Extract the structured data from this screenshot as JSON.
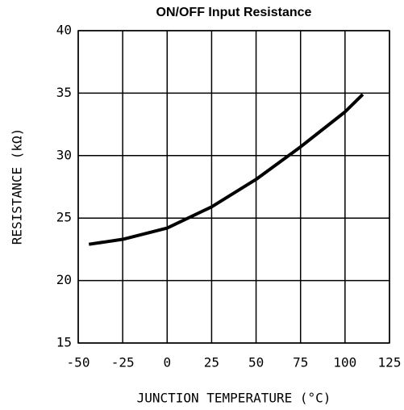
{
  "chart_data": {
    "type": "line",
    "title": "ON/OFF Input Resistance",
    "x_label": "JUNCTION TEMPERATURE (°C)",
    "y_label": "RESISTANCE (kΩ)",
    "x": [
      -44,
      -25,
      0,
      25,
      50,
      75,
      100,
      110
    ],
    "series": [
      {
        "name": "Resistance",
        "color": "#000000",
        "values": [
          22.9,
          23.3,
          24.2,
          25.9,
          28.1,
          30.7,
          33.5,
          34.9
        ]
      }
    ],
    "xlim": [
      -50,
      125
    ],
    "xticks": [
      -50,
      -25,
      0,
      25,
      50,
      75,
      100,
      125
    ],
    "ylim": [
      15,
      40
    ],
    "yticks": [
      15,
      20,
      25,
      30,
      35,
      40
    ],
    "grid": true
  }
}
